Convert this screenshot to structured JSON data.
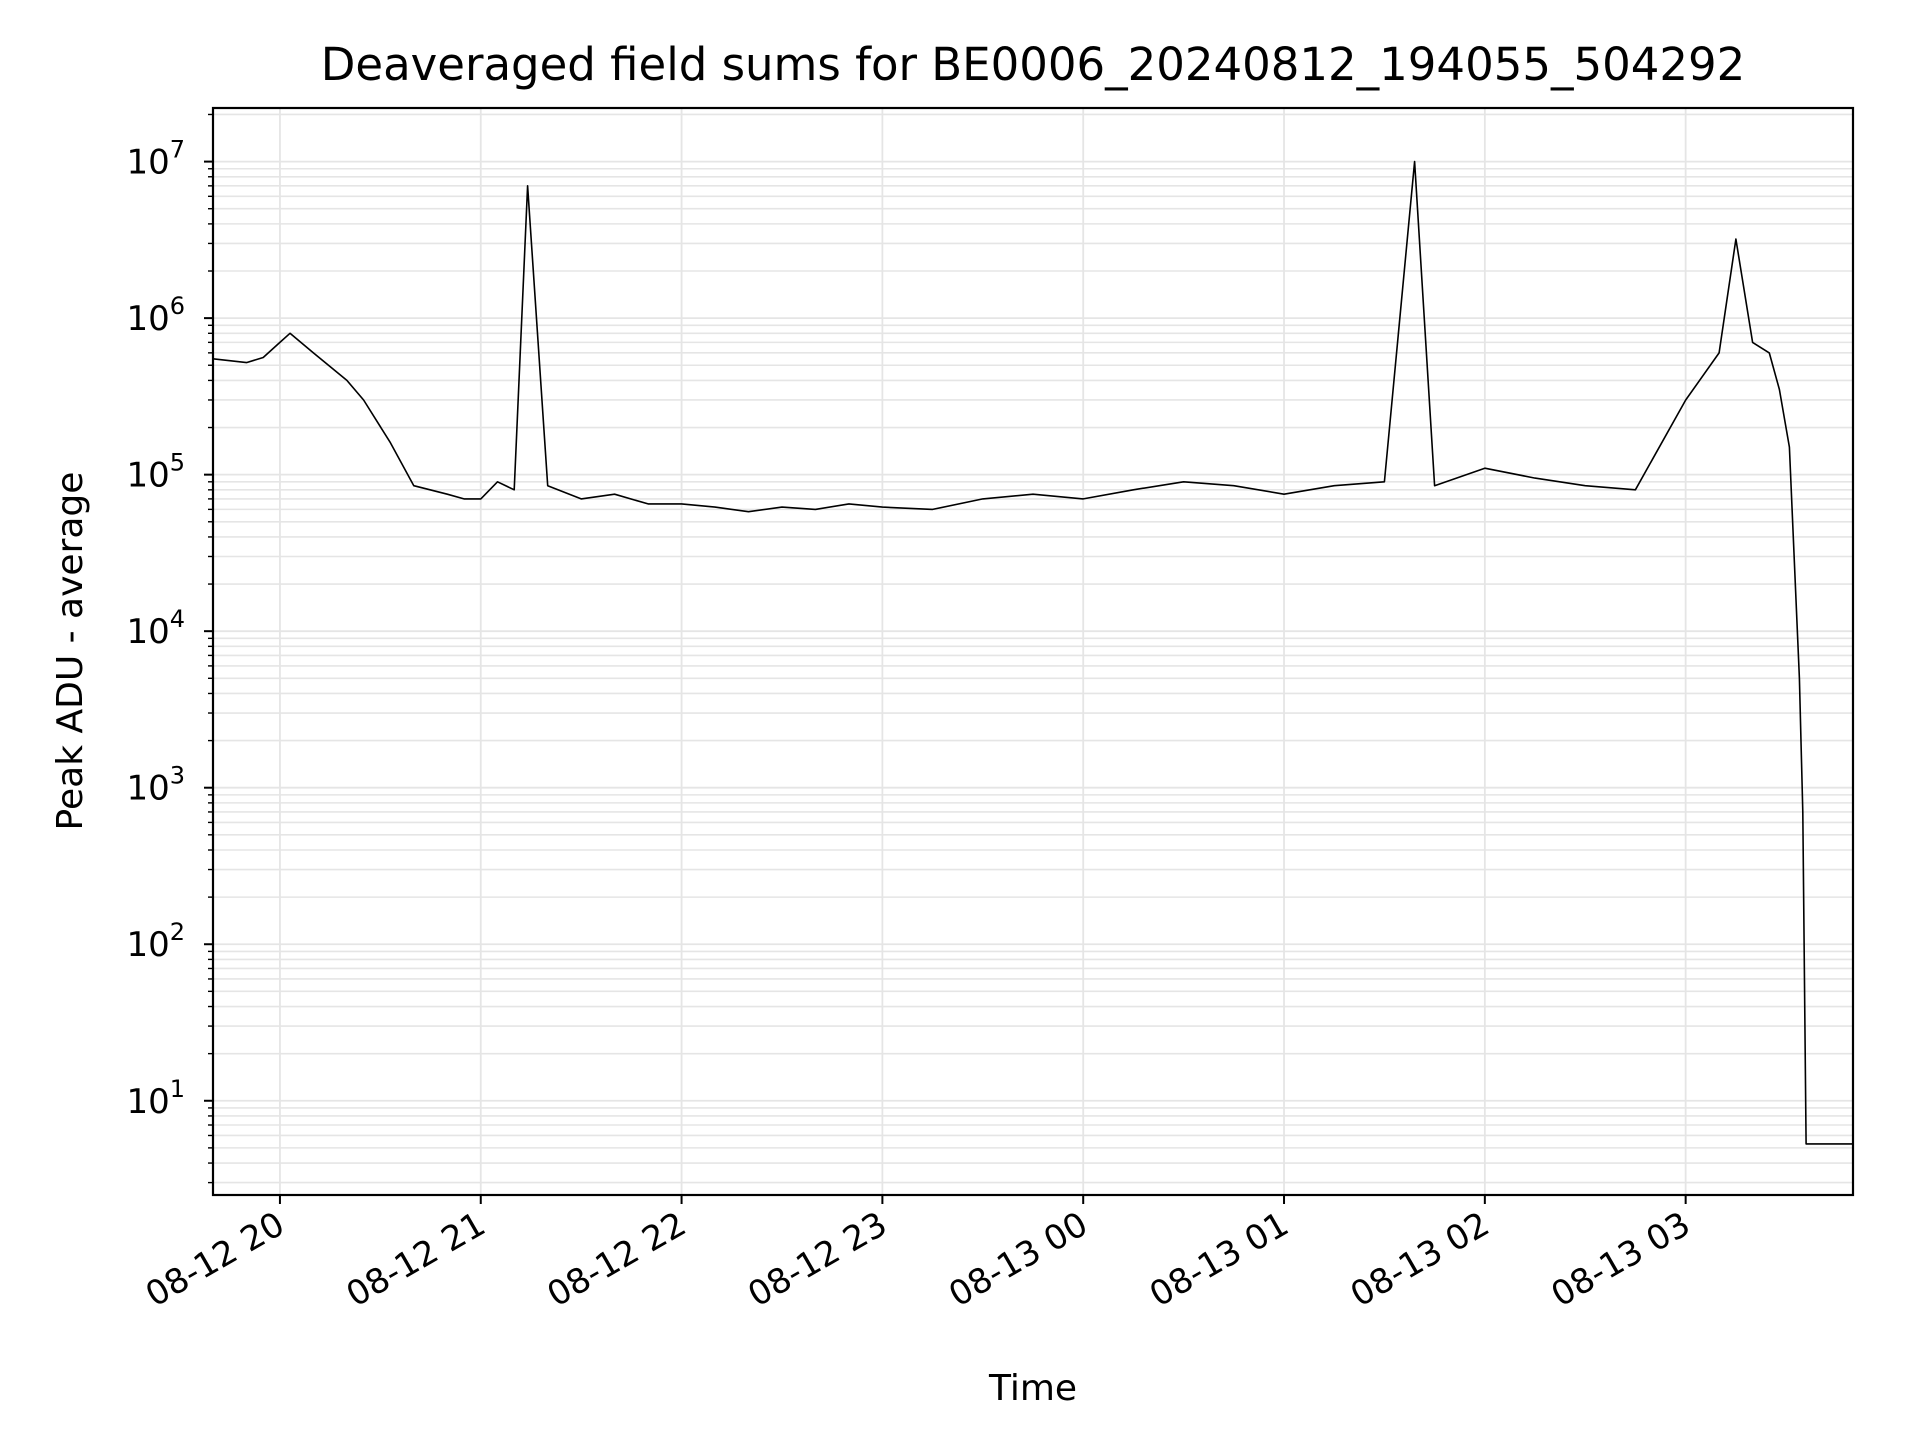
{
  "chart_data": {
    "type": "line",
    "title": "Deaveraged field sums for BE0006_20240812_194055_504292",
    "xlabel": "Time",
    "ylabel": "Peak ADU - average",
    "yscale": "log",
    "ylim": [
      2.5,
      22000000
    ],
    "xlim": [
      "2024-08-12 19:40",
      "2024-08-13 03:50"
    ],
    "grid": true,
    "x_tick_labels": [
      "08-12 20",
      "08-12 21",
      "08-12 22",
      "08-12 23",
      "08-13 00",
      "08-13 01",
      "08-13 02",
      "08-13 03"
    ],
    "x_ticks": [
      "2024-08-12 20:00",
      "2024-08-12 21:00",
      "2024-08-12 22:00",
      "2024-08-12 23:00",
      "2024-08-13 00:00",
      "2024-08-13 01:00",
      "2024-08-13 02:00",
      "2024-08-13 03:00"
    ],
    "y_ticks": [
      10,
      100,
      1000,
      10000,
      100000,
      1000000,
      10000000
    ],
    "y_tick_labels": [
      {
        "base": "10",
        "exp": "1"
      },
      {
        "base": "10",
        "exp": "2"
      },
      {
        "base": "10",
        "exp": "3"
      },
      {
        "base": "10",
        "exp": "4"
      },
      {
        "base": "10",
        "exp": "5"
      },
      {
        "base": "10",
        "exp": "6"
      },
      {
        "base": "10",
        "exp": "7"
      }
    ],
    "line_color": "#000000",
    "grid_color": "#e5e5e5",
    "series": [
      {
        "x": [
          "2024-08-12 19:40",
          "2024-08-12 19:50",
          "2024-08-12 19:55",
          "2024-08-12 20:00",
          "2024-08-12 20:03",
          "2024-08-12 20:10",
          "2024-08-12 20:20",
          "2024-08-12 20:25",
          "2024-08-12 20:33",
          "2024-08-12 20:40",
          "2024-08-12 20:50",
          "2024-08-12 20:55",
          "2024-08-12 21:00",
          "2024-08-12 21:05",
          "2024-08-12 21:10",
          "2024-08-12 21:14",
          "2024-08-12 21:20",
          "2024-08-12 21:30",
          "2024-08-12 21:40",
          "2024-08-12 21:50",
          "2024-08-12 22:00",
          "2024-08-12 22:10",
          "2024-08-12 22:20",
          "2024-08-12 22:30",
          "2024-08-12 22:40",
          "2024-08-12 22:50",
          "2024-08-12 23:00",
          "2024-08-12 23:15",
          "2024-08-12 23:30",
          "2024-08-12 23:45",
          "2024-08-13 00:00",
          "2024-08-13 00:15",
          "2024-08-13 00:30",
          "2024-08-13 00:45",
          "2024-08-13 01:00",
          "2024-08-13 01:15",
          "2024-08-13 01:30",
          "2024-08-13 01:39",
          "2024-08-13 01:45",
          "2024-08-13 02:00",
          "2024-08-13 02:15",
          "2024-08-13 02:30",
          "2024-08-13 02:45",
          "2024-08-13 03:00",
          "2024-08-13 03:10",
          "2024-08-13 03:15",
          "2024-08-13 03:20",
          "2024-08-13 03:25",
          "2024-08-13 03:28",
          "2024-08-13 03:31",
          "2024-08-13 03:34",
          "2024-08-13 03:35",
          "2024-08-13 03:36",
          "2024-08-13 03:50"
        ],
        "y": [
          550000,
          520000,
          560000,
          700000,
          800000,
          600000,
          400000,
          300000,
          160000,
          85000,
          75000,
          70000,
          70000,
          90000,
          80000,
          7000000,
          85000,
          70000,
          75000,
          65000,
          65000,
          62000,
          58000,
          62000,
          60000,
          65000,
          62000,
          60000,
          70000,
          75000,
          70000,
          80000,
          90000,
          85000,
          75000,
          85000,
          90000,
          10000000,
          85000,
          110000,
          95000,
          85000,
          80000,
          300000,
          600000,
          3200000,
          700000,
          600000,
          350000,
          150000,
          5000,
          700,
          5.3,
          5.3
        ]
      }
    ]
  }
}
